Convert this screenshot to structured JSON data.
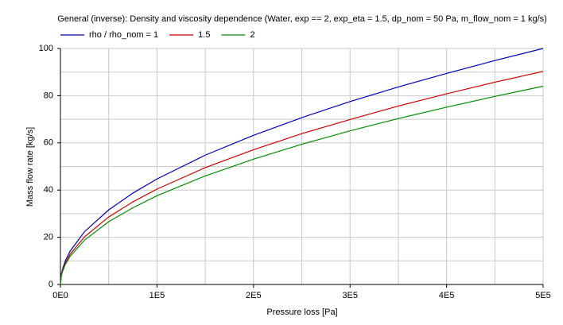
{
  "chart_data": {
    "type": "line",
    "title": "General (inverse): Density and viscosity dependence (Water, exp == 2, exp_eta = 1.5, dp_nom = 50 Pa, m_flow_nom = 1 kg/s)",
    "x_label": "Pressure loss [Pa]",
    "y_label": "Mass flow rate [kg/s]",
    "x": [
      0,
      1000,
      2000,
      5000,
      10000,
      25000,
      50000,
      75000,
      100000,
      150000,
      200000,
      250000,
      300000,
      350000,
      400000,
      450000,
      500000
    ],
    "series": [
      {
        "name": "rho / rho_nom = 1",
        "color": "#0000b4",
        "values": [
          0,
          4.5,
          6.3,
          10,
          14.1,
          22.4,
          31.6,
          38.7,
          44.7,
          54.8,
          63.2,
          70.7,
          77.5,
          83.7,
          89.4,
          94.9,
          100
        ]
      },
      {
        "name": "1.5",
        "color": "#c80000",
        "values": [
          0,
          4.0,
          5.7,
          9.0,
          12.8,
          20.2,
          28.6,
          35.0,
          40.4,
          49.5,
          57.1,
          63.9,
          69.9,
          75.6,
          80.8,
          85.7,
          90.3
        ]
      },
      {
        "name": "2",
        "color": "#008c00",
        "values": [
          0,
          3.8,
          5.3,
          8.4,
          11.9,
          18.8,
          26.6,
          32.5,
          37.6,
          46.0,
          53.1,
          59.4,
          65.1,
          70.3,
          75.1,
          79.7,
          84.0
        ]
      }
    ],
    "xlim": [
      0,
      500000
    ],
    "ylim": [
      0,
      100
    ],
    "xticks": [
      {
        "value": 0,
        "label": "0E0"
      },
      {
        "value": 100000,
        "label": "1E5"
      },
      {
        "value": 200000,
        "label": "2E5"
      },
      {
        "value": 300000,
        "label": "3E5"
      },
      {
        "value": 400000,
        "label": "4E5"
      },
      {
        "value": 500000,
        "label": "5E5"
      }
    ],
    "yticks": [
      0,
      20,
      40,
      60,
      80,
      100
    ],
    "xminor": [
      50000,
      150000,
      250000,
      350000,
      450000
    ],
    "yminor": [
      10,
      30,
      50,
      70,
      90
    ],
    "grid": true,
    "legend": "top"
  }
}
